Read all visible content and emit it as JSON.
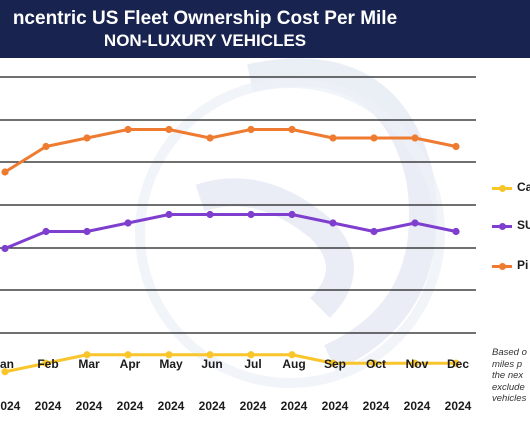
{
  "header": {
    "title_line1": "ncentric US Fleet Ownership Cost Per Mile",
    "title_line2": "NON-LUXURY VEHICLES",
    "background": "#18234f"
  },
  "chart_data": {
    "type": "line",
    "categories": [
      [
        "an",
        "2024"
      ],
      [
        "Feb",
        "2024"
      ],
      [
        "Mar",
        "2024"
      ],
      [
        "Apr",
        "2024"
      ],
      [
        "May",
        "2024"
      ],
      [
        "Jun",
        "2024"
      ],
      [
        "Jul",
        "2024"
      ],
      [
        "Aug",
        "2024"
      ],
      [
        "Sep",
        "2024"
      ],
      [
        "Oct",
        "2024"
      ],
      [
        "Nov",
        "2024"
      ],
      [
        "Dec",
        "2024"
      ]
    ],
    "y_axis_labels_visible": false,
    "grid": "horizontal",
    "legend_position": "right",
    "series": [
      {
        "name": "Ca",
        "color": "#f8c62b",
        "values": [
          0.5,
          1.5,
          2.5,
          2.5,
          2.5,
          2.5,
          2.5,
          2.5,
          1.5,
          1.5,
          1.5,
          1.5
        ]
      },
      {
        "name": "SU",
        "color": "#7f3fce",
        "values": [
          15,
          17,
          17,
          18,
          19,
          19,
          19,
          19,
          18,
          17,
          18,
          17
        ]
      },
      {
        "name": "Pi",
        "color": "#ee7b30",
        "values": [
          24,
          27,
          28,
          29,
          29,
          28,
          29,
          29,
          28,
          28,
          28,
          27
        ]
      }
    ],
    "ylim": [
      0,
      33
    ]
  },
  "note_lines": [
    "Based o",
    "miles p",
    "the nex",
    "exclude",
    "vehicles"
  ]
}
